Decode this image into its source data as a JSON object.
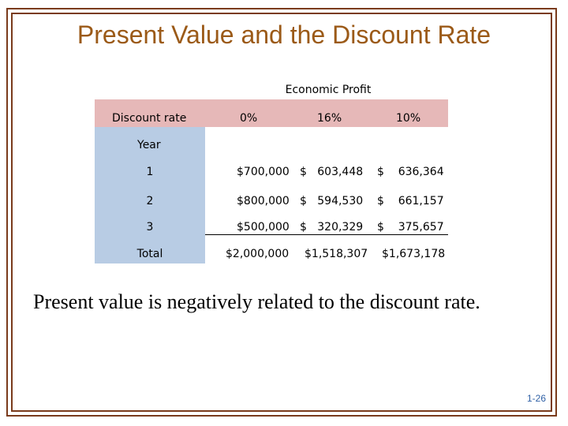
{
  "slide": {
    "title": "Present Value and the Discount Rate",
    "statement": "Present value is negatively related to the discount rate.",
    "page_number": "1-26"
  },
  "table": {
    "caption": "Economic Profit",
    "discount_label": "Discount rate",
    "rates": [
      "0%",
      "16%",
      "10%"
    ],
    "year_label": "Year",
    "rows": [
      {
        "label": "1",
        "c0": "$700,000",
        "c1": "$   603,448",
        "c2": "$    636,364"
      },
      {
        "label": "2",
        "c0": "$800,000",
        "c1": "$   594,530",
        "c2": "$    661,157"
      },
      {
        "label": "3",
        "c0": "$500,000",
        "c1": "$   320,329",
        "c2": "$    375,657"
      }
    ],
    "total": {
      "label": "Total",
      "c0": "$2,000,000",
      "c1": "$1,518,307",
      "c2": "$1,673,178"
    }
  },
  "colors": {
    "frame": "#7a3b1c",
    "title": "#9b5a18",
    "header_band": "#e6b8b8",
    "row_band": "#b8cce4",
    "page_number": "#2e5fa5"
  }
}
